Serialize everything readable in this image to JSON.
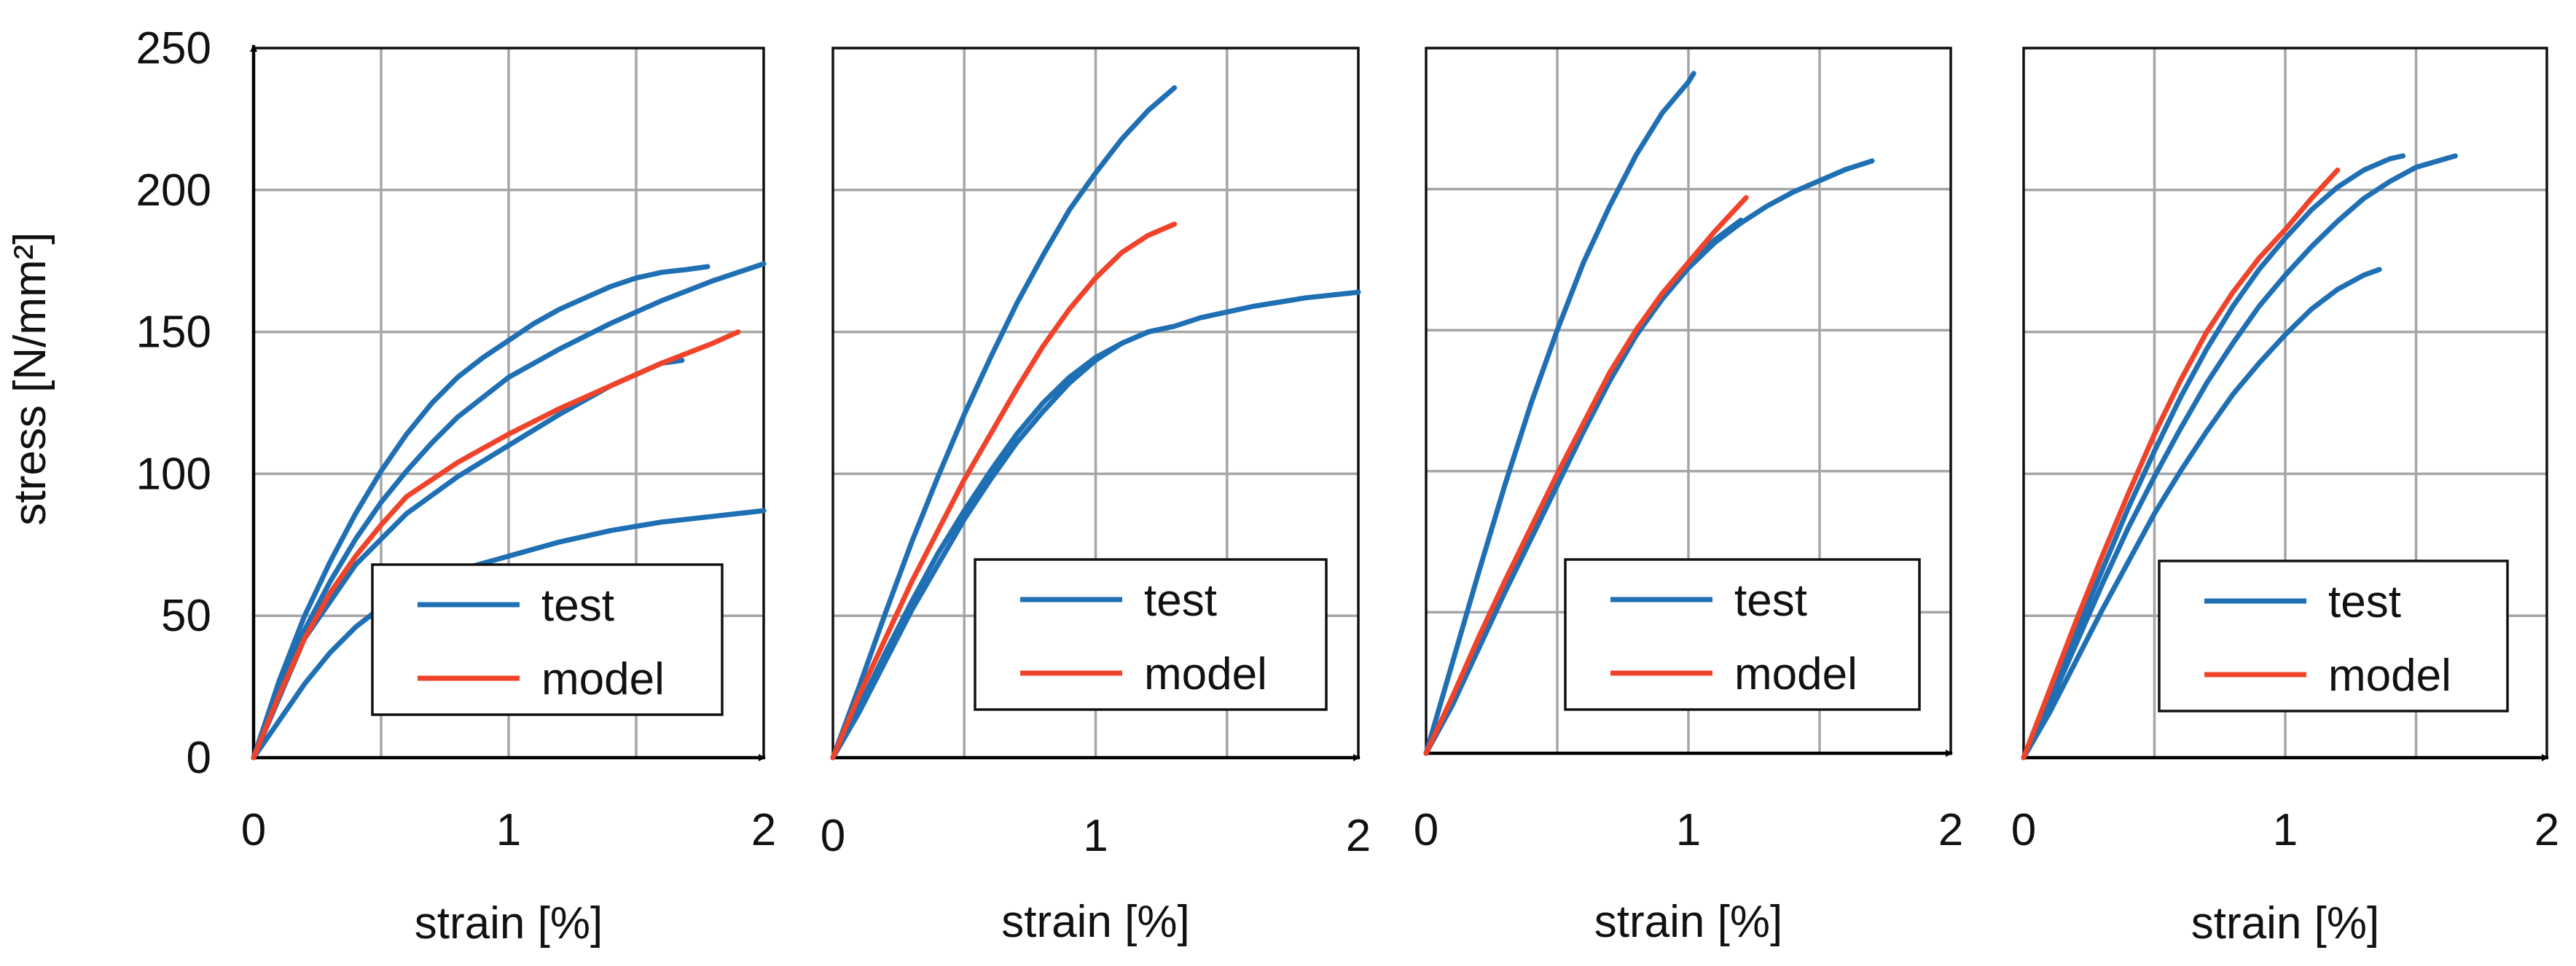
{
  "colors": {
    "test": "#1f6fb4",
    "model": "#f0432a",
    "grid": "#a6a6a6"
  },
  "chart_data": [
    {
      "type": "line",
      "xlabel": "strain [%]",
      "ylabel": "stress [N/mm²]",
      "xlim": [
        0,
        2
      ],
      "ylim": [
        0,
        250
      ],
      "xticks": [
        "0",
        "1",
        "2"
      ],
      "yticks": [
        "0",
        "50",
        "100",
        "150",
        "200",
        "250"
      ],
      "grid": true,
      "legend": {
        "position": "bottom-right",
        "entries": [
          "test",
          "model"
        ]
      },
      "series": [
        {
          "name": "test",
          "points": [
            [
              0,
              0
            ],
            [
              0.1,
              27
            ],
            [
              0.2,
              50
            ],
            [
              0.3,
              69
            ],
            [
              0.4,
              86
            ],
            [
              0.5,
              101
            ],
            [
              0.6,
              114
            ],
            [
              0.7,
              125
            ],
            [
              0.8,
              134
            ],
            [
              0.9,
              141
            ],
            [
              1.0,
              147
            ],
            [
              1.1,
              153
            ],
            [
              1.2,
              158
            ],
            [
              1.3,
              162
            ],
            [
              1.4,
              166
            ],
            [
              1.5,
              169
            ],
            [
              1.6,
              171
            ],
            [
              1.7,
              172
            ],
            [
              1.78,
              173
            ]
          ]
        },
        {
          "name": "test",
          "points": [
            [
              0,
              0
            ],
            [
              0.1,
              24
            ],
            [
              0.2,
              45
            ],
            [
              0.3,
              62
            ],
            [
              0.4,
              77
            ],
            [
              0.5,
              90
            ],
            [
              0.6,
              101
            ],
            [
              0.7,
              111
            ],
            [
              0.8,
              120
            ],
            [
              0.9,
              127
            ],
            [
              1.0,
              134
            ],
            [
              1.2,
              144
            ],
            [
              1.4,
              153
            ],
            [
              1.6,
              161
            ],
            [
              1.8,
              168
            ],
            [
              2.0,
              174
            ]
          ]
        },
        {
          "name": "test",
          "points": [
            [
              0,
              0
            ],
            [
              0.2,
              42
            ],
            [
              0.4,
              68
            ],
            [
              0.6,
              86
            ],
            [
              0.8,
              99
            ],
            [
              1.0,
              110
            ],
            [
              1.2,
              121
            ],
            [
              1.4,
              131
            ],
            [
              1.6,
              139
            ],
            [
              1.68,
              140
            ]
          ]
        },
        {
          "name": "test",
          "points": [
            [
              0,
              0
            ],
            [
              0.1,
              13
            ],
            [
              0.2,
              26
            ],
            [
              0.3,
              37
            ],
            [
              0.4,
              46
            ],
            [
              0.5,
              53
            ],
            [
              0.6,
              59
            ],
            [
              0.8,
              66
            ],
            [
              1.0,
              71
            ],
            [
              1.2,
              76
            ],
            [
              1.4,
              80
            ],
            [
              1.6,
              83
            ],
            [
              1.8,
              85
            ],
            [
              2.0,
              87
            ]
          ]
        },
        {
          "name": "model",
          "points": [
            [
              0,
              0
            ],
            [
              0.1,
              22
            ],
            [
              0.2,
              42
            ],
            [
              0.3,
              58
            ],
            [
              0.4,
              71
            ],
            [
              0.5,
              82
            ],
            [
              0.6,
              92
            ],
            [
              0.8,
              104
            ],
            [
              1.0,
              114
            ],
            [
              1.2,
              123
            ],
            [
              1.4,
              131
            ],
            [
              1.6,
              139
            ],
            [
              1.8,
              146
            ],
            [
              1.9,
              150
            ]
          ]
        }
      ]
    },
    {
      "type": "line",
      "xlabel": "strain [%]",
      "ylabel": "",
      "xlim": [
        0,
        2
      ],
      "ylim": [
        0,
        250
      ],
      "xticks": [
        "0",
        "1",
        "2"
      ],
      "grid": true,
      "legend": {
        "position": "bottom-right",
        "entries": [
          "test",
          "model"
        ]
      },
      "series": [
        {
          "name": "test",
          "points": [
            [
              0,
              0
            ],
            [
              0.1,
              25
            ],
            [
              0.2,
              51
            ],
            [
              0.3,
              76
            ],
            [
              0.4,
              99
            ],
            [
              0.5,
              121
            ],
            [
              0.6,
              141
            ],
            [
              0.7,
              160
            ],
            [
              0.8,
              177
            ],
            [
              0.9,
              193
            ],
            [
              1.0,
              206
            ],
            [
              1.1,
              218
            ],
            [
              1.2,
              228
            ],
            [
              1.3,
              236
            ]
          ]
        },
        {
          "name": "test",
          "points": [
            [
              0,
              0
            ],
            [
              0.1,
              16
            ],
            [
              0.2,
              34
            ],
            [
              0.3,
              52
            ],
            [
              0.4,
              68
            ],
            [
              0.5,
              84
            ],
            [
              0.6,
              98
            ],
            [
              0.7,
              111
            ],
            [
              0.8,
              122
            ],
            [
              0.9,
              132
            ],
            [
              1.0,
              140
            ],
            [
              1.1,
              146
            ],
            [
              1.2,
              150
            ],
            [
              1.3,
              152
            ],
            [
              1.4,
              155
            ],
            [
              1.6,
              159
            ],
            [
              1.8,
              162
            ],
            [
              2.0,
              164
            ]
          ]
        },
        {
          "name": "test",
          "points": [
            [
              0,
              0
            ],
            [
              0.1,
              18
            ],
            [
              0.2,
              37
            ],
            [
              0.3,
              55
            ],
            [
              0.4,
              72
            ],
            [
              0.5,
              87
            ],
            [
              0.6,
              101
            ],
            [
              0.7,
              114
            ],
            [
              0.8,
              125
            ],
            [
              0.9,
              134
            ],
            [
              1.0,
              141
            ],
            [
              1.1,
              146
            ],
            [
              1.2,
              150
            ],
            [
              1.25,
              151
            ]
          ]
        },
        {
          "name": "model",
          "points": [
            [
              0,
              0
            ],
            [
              0.1,
              22
            ],
            [
              0.2,
              42
            ],
            [
              0.3,
              62
            ],
            [
              0.4,
              80
            ],
            [
              0.5,
              98
            ],
            [
              0.6,
              114
            ],
            [
              0.7,
              130
            ],
            [
              0.8,
              145
            ],
            [
              0.9,
              158
            ],
            [
              1.0,
              169
            ],
            [
              1.1,
              178
            ],
            [
              1.2,
              184
            ],
            [
              1.3,
              188
            ]
          ]
        }
      ]
    },
    {
      "type": "line",
      "xlabel": "strain [%]",
      "ylabel": "",
      "xlim": [
        0,
        2
      ],
      "ylim": [
        0,
        250
      ],
      "xticks": [
        "0",
        "1",
        "2"
      ],
      "grid": true,
      "legend": {
        "position": "bottom-right",
        "entries": [
          "test",
          "model"
        ]
      },
      "series": [
        {
          "name": "test",
          "points": [
            [
              0,
              0
            ],
            [
              0.1,
              32
            ],
            [
              0.2,
              64
            ],
            [
              0.3,
              95
            ],
            [
              0.4,
              124
            ],
            [
              0.5,
              150
            ],
            [
              0.6,
              174
            ],
            [
              0.7,
              194
            ],
            [
              0.8,
              212
            ],
            [
              0.9,
              227
            ],
            [
              1.0,
              238
            ],
            [
              1.02,
              241
            ]
          ]
        },
        {
          "name": "test",
          "points": [
            [
              0,
              0
            ],
            [
              0.1,
              18
            ],
            [
              0.2,
              38
            ],
            [
              0.3,
              58
            ],
            [
              0.4,
              78
            ],
            [
              0.5,
              97
            ],
            [
              0.6,
              116
            ],
            [
              0.7,
              133
            ],
            [
              0.8,
              148
            ],
            [
              0.9,
              161
            ],
            [
              1.0,
              172
            ],
            [
              1.1,
              181
            ],
            [
              1.2,
              188
            ],
            [
              1.3,
              194
            ],
            [
              1.4,
              199
            ],
            [
              1.5,
              203
            ],
            [
              1.6,
              207
            ],
            [
              1.7,
              210
            ]
          ]
        },
        {
          "name": "test",
          "points": [
            [
              0,
              0
            ],
            [
              0.1,
              17
            ],
            [
              0.2,
              37
            ],
            [
              0.3,
              57
            ],
            [
              0.4,
              76
            ],
            [
              0.5,
              95
            ],
            [
              0.6,
              114
            ],
            [
              0.7,
              132
            ],
            [
              0.8,
              148
            ],
            [
              0.9,
              162
            ],
            [
              1.0,
              173
            ],
            [
              1.1,
              182
            ],
            [
              1.2,
              189
            ]
          ]
        },
        {
          "name": "model",
          "points": [
            [
              0,
              0
            ],
            [
              0.1,
              20
            ],
            [
              0.2,
              41
            ],
            [
              0.3,
              61
            ],
            [
              0.4,
              80
            ],
            [
              0.5,
              99
            ],
            [
              0.6,
              117
            ],
            [
              0.7,
              135
            ],
            [
              0.8,
              150
            ],
            [
              0.9,
              163
            ],
            [
              1.0,
              174
            ],
            [
              1.1,
              185
            ],
            [
              1.22,
              197
            ]
          ]
        }
      ]
    },
    {
      "type": "line",
      "xlabel": "strain [%]",
      "ylabel": "",
      "xlim": [
        0,
        2
      ],
      "ylim": [
        0,
        250
      ],
      "xticks": [
        "0",
        "1",
        "2"
      ],
      "grid": true,
      "legend": {
        "position": "bottom-right",
        "entries": [
          "test",
          "model"
        ]
      },
      "series": [
        {
          "name": "test",
          "points": [
            [
              0,
              0
            ],
            [
              0.1,
              21
            ],
            [
              0.2,
              44
            ],
            [
              0.3,
              66
            ],
            [
              0.4,
              88
            ],
            [
              0.5,
              108
            ],
            [
              0.6,
              127
            ],
            [
              0.7,
              144
            ],
            [
              0.8,
              159
            ],
            [
              0.9,
              172
            ],
            [
              1.0,
              183
            ],
            [
              1.1,
              193
            ],
            [
              1.2,
              201
            ],
            [
              1.3,
              207
            ],
            [
              1.4,
              211
            ],
            [
              1.45,
              212
            ]
          ]
        },
        {
          "name": "test",
          "points": [
            [
              0,
              0
            ],
            [
              0.1,
              19
            ],
            [
              0.2,
              40
            ],
            [
              0.3,
              61
            ],
            [
              0.4,
              81
            ],
            [
              0.5,
              99
            ],
            [
              0.6,
              116
            ],
            [
              0.7,
              132
            ],
            [
              0.8,
              146
            ],
            [
              0.9,
              159
            ],
            [
              1.0,
              170
            ],
            [
              1.1,
              180
            ],
            [
              1.2,
              189
            ],
            [
              1.3,
              197
            ],
            [
              1.4,
              203
            ],
            [
              1.5,
              208
            ],
            [
              1.65,
              212
            ]
          ]
        },
        {
          "name": "test",
          "points": [
            [
              0,
              0
            ],
            [
              0.1,
              16
            ],
            [
              0.2,
              34
            ],
            [
              0.3,
              52
            ],
            [
              0.4,
              69
            ],
            [
              0.5,
              86
            ],
            [
              0.6,
              101
            ],
            [
              0.7,
              115
            ],
            [
              0.8,
              128
            ],
            [
              0.9,
              139
            ],
            [
              1.0,
              149
            ],
            [
              1.1,
              158
            ],
            [
              1.2,
              165
            ],
            [
              1.3,
              170
            ],
            [
              1.36,
              172
            ]
          ]
        },
        {
          "name": "model",
          "points": [
            [
              0,
              0
            ],
            [
              0.1,
              24
            ],
            [
              0.2,
              48
            ],
            [
              0.3,
              71
            ],
            [
              0.4,
              93
            ],
            [
              0.5,
              114
            ],
            [
              0.6,
              133
            ],
            [
              0.7,
              150
            ],
            [
              0.8,
              164
            ],
            [
              0.9,
              176
            ],
            [
              1.0,
              186
            ],
            [
              1.1,
              197
            ],
            [
              1.2,
              207
            ]
          ]
        }
      ]
    }
  ]
}
